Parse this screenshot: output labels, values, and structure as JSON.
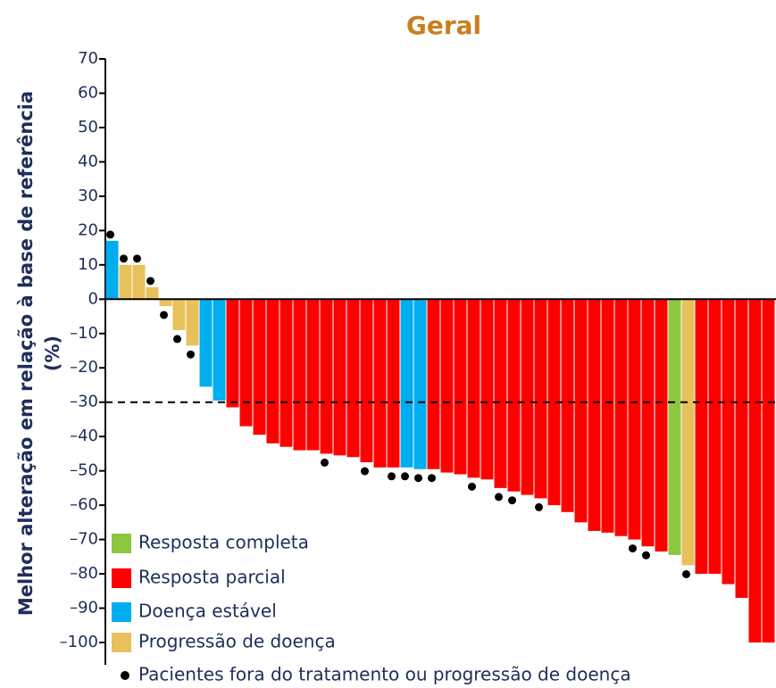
{
  "chart_data": {
    "type": "waterfall",
    "title": "Geral",
    "y_label": "Melhor alteração em relação à base de referência",
    "y_label_2": "(%)",
    "ylim": [
      -100,
      70
    ],
    "yticks": [
      70,
      60,
      50,
      40,
      30,
      20,
      10,
      0,
      {
        "value": -10,
        "label": "–10"
      },
      {
        "value": -20,
        "label": "–20"
      },
      {
        "value": -30,
        "label": "–30"
      },
      {
        "value": -40,
        "label": "–40"
      },
      {
        "value": -50,
        "label": "–50"
      },
      {
        "value": -60,
        "label": "–60"
      },
      {
        "value": -70,
        "label": "–70"
      },
      {
        "value": -80,
        "label": "–80"
      },
      {
        "value": -90,
        "label": "–90"
      },
      {
        "value": -100,
        "label": "–100"
      }
    ],
    "reference_line": -30,
    "series": [
      {
        "name": "Resposta completa",
        "color": "#8dc63f",
        "values": [
          null,
          null,
          null,
          null,
          null,
          null,
          null,
          null,
          null,
          null,
          null,
          null,
          null,
          null,
          null,
          null,
          null,
          null,
          null,
          null,
          null,
          null,
          null,
          null,
          null,
          null,
          null,
          null,
          null,
          null,
          null,
          null,
          null,
          null,
          null,
          null,
          null,
          null,
          null,
          null,
          null,
          null,
          -74.5,
          null,
          null,
          null,
          null,
          null,
          null,
          null
        ]
      },
      {
        "name": "Resposta parcial",
        "color": "#ff0000",
        "values": [
          null,
          null,
          null,
          null,
          null,
          null,
          null,
          null,
          null,
          -31.5,
          -37,
          -39.5,
          -42,
          -43,
          -44,
          -44,
          -45,
          -45.5,
          -46,
          -47.5,
          -49,
          -49,
          null,
          null,
          -49.5,
          -50.5,
          -51,
          -52,
          -52.5,
          -55,
          -56,
          -57,
          -58,
          -60,
          -62,
          -65,
          -67.5,
          -68,
          -69,
          -70,
          -72,
          -73.5,
          null,
          null,
          -80,
          -80,
          -83,
          -87,
          -100,
          -100
        ]
      },
      {
        "name": "Doença estável",
        "color": "#00aeef",
        "values": [
          17,
          null,
          null,
          null,
          null,
          null,
          null,
          -25.5,
          -29.5,
          null,
          null,
          null,
          null,
          null,
          null,
          null,
          null,
          null,
          null,
          null,
          null,
          null,
          -49,
          -49.5,
          null,
          null,
          null,
          null,
          null,
          null,
          null,
          null,
          null,
          null,
          null,
          null,
          null,
          null,
          null,
          null,
          null,
          null,
          null,
          null,
          null,
          null,
          null,
          null,
          null,
          null
        ]
      },
      {
        "name": "Progressão de doença",
        "color": "#e8c15a",
        "values": [
          null,
          10,
          10,
          3.5,
          -2,
          -9,
          -13.5,
          null,
          null,
          null,
          null,
          null,
          null,
          null,
          null,
          null,
          null,
          null,
          null,
          null,
          null,
          null,
          null,
          null,
          null,
          null,
          null,
          null,
          null,
          null,
          null,
          null,
          null,
          null,
          null,
          null,
          null,
          null,
          null,
          null,
          null,
          null,
          null,
          -77.5,
          null,
          null,
          null,
          null,
          null,
          null
        ]
      }
    ],
    "markers": [
      true,
      true,
      true,
      true,
      true,
      true,
      true,
      false,
      false,
      false,
      false,
      false,
      false,
      false,
      false,
      false,
      true,
      false,
      false,
      true,
      false,
      true,
      true,
      true,
      true,
      false,
      false,
      true,
      false,
      true,
      true,
      false,
      true,
      false,
      false,
      false,
      false,
      false,
      false,
      true,
      true,
      false,
      false,
      true,
      false,
      false,
      false,
      false,
      false,
      false
    ],
    "marker_label": "Pacientes fora do tratamento ou progressão de doença",
    "marker_color": "#000000"
  }
}
